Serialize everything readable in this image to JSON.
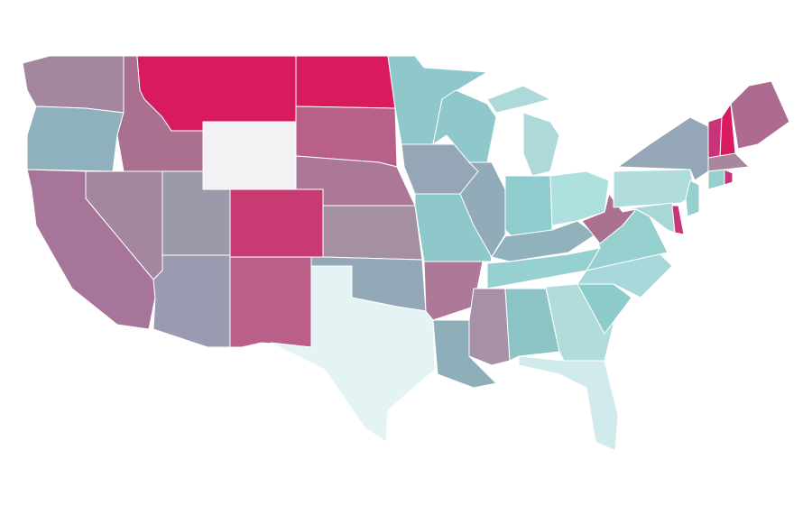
{
  "map": {
    "regions": [
      {
        "color": "#a4879f"
      },
      {
        "color": "#8fb0bd"
      },
      {
        "color": "#a9708f"
      },
      {
        "color": "#d81b5e"
      },
      {
        "color": "#f2f2f4"
      },
      {
        "color": "#d81b5e"
      },
      {
        "color": "#b86088"
      },
      {
        "color": "#ab7898"
      },
      {
        "color": "#a4909f"
      },
      {
        "color": "#c83a72"
      },
      {
        "color": "#9b9aab"
      },
      {
        "color": "#a5869f"
      },
      {
        "color": "#a7759a"
      },
      {
        "color": "#9a9bb0"
      },
      {
        "color": "#ba6088"
      },
      {
        "color": "#93a8b6"
      },
      {
        "color": "#e4f3f4"
      },
      {
        "color": "#8ec8cb"
      },
      {
        "color": "#97a6b6"
      },
      {
        "color": "#8fc8ca"
      },
      {
        "color": "#ae7898"
      },
      {
        "color": "#8eaeb9"
      },
      {
        "color": "#8ec8cb"
      },
      {
        "color": "#91abb9"
      },
      {
        "color": "#aed9db"
      },
      {
        "color": "#aed9db"
      },
      {
        "color": "#8fcccd"
      },
      {
        "color": "#aee0df"
      },
      {
        "color": "#91b2bd"
      },
      {
        "color": "#96d0d0"
      },
      {
        "color": "#a691a6"
      },
      {
        "color": "#8cc4c5"
      },
      {
        "color": "#b1dcdc"
      },
      {
        "color": "#d1ebec"
      },
      {
        "color": "#8ecccb"
      },
      {
        "color": "#a8d8da"
      },
      {
        "color": "#96d1d0"
      },
      {
        "color": "#a9708f"
      },
      {
        "color": "#b0dcdd"
      },
      {
        "color": "#95a7b7"
      },
      {
        "color": "#96d1d0"
      },
      {
        "color": "#a7d8d8"
      },
      {
        "color": "#c8337a"
      },
      {
        "color": "#c8337a"
      },
      {
        "color": "#d81b5e"
      },
      {
        "color": "#ad6b91"
      },
      {
        "color": "#a6879e"
      },
      {
        "color": "#95d0cf"
      },
      {
        "color": "#c8337a"
      }
    ]
  }
}
